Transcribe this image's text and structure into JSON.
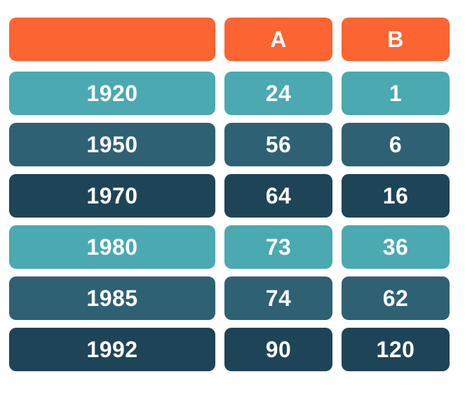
{
  "colors": {
    "header": "#FC6432",
    "row_light": "#4AA9B1",
    "row_medium": "#2E6173",
    "row_dark": "#1E4458",
    "text": "#FFFFFF",
    "background": "#FFFFFF"
  },
  "table": {
    "header": {
      "col0": "",
      "col1": "A",
      "col2": "B"
    },
    "rows": [
      {
        "label": "1920",
        "a": "24",
        "b": "1",
        "color": "#4AA9B1"
      },
      {
        "label": "1950",
        "a": "56",
        "b": "6",
        "color": "#2E6173"
      },
      {
        "label": "1970",
        "a": "64",
        "b": "16",
        "color": "#1E4458"
      },
      {
        "label": "1980",
        "a": "73",
        "b": "36",
        "color": "#4AA9B1"
      },
      {
        "label": "1985",
        "a": "74",
        "b": "62",
        "color": "#2E6173"
      },
      {
        "label": "1992",
        "a": "90",
        "b": "120",
        "color": "#1E4458"
      }
    ]
  },
  "chart_data": {
    "type": "table",
    "title": "",
    "columns": [
      "",
      "A",
      "B"
    ],
    "rows": [
      [
        "1920",
        24,
        1
      ],
      [
        "1950",
        56,
        6
      ],
      [
        "1970",
        64,
        16
      ],
      [
        "1980",
        73,
        36
      ],
      [
        "1985",
        74,
        62
      ],
      [
        "1992",
        90,
        120
      ]
    ],
    "layout_hints": {
      "header_color": "#FC6432",
      "row_color_cycle": [
        "#4AA9B1",
        "#2E6173",
        "#1E4458"
      ],
      "cell_style": "rounded-rectangles",
      "grid": false,
      "legend": "none"
    }
  }
}
